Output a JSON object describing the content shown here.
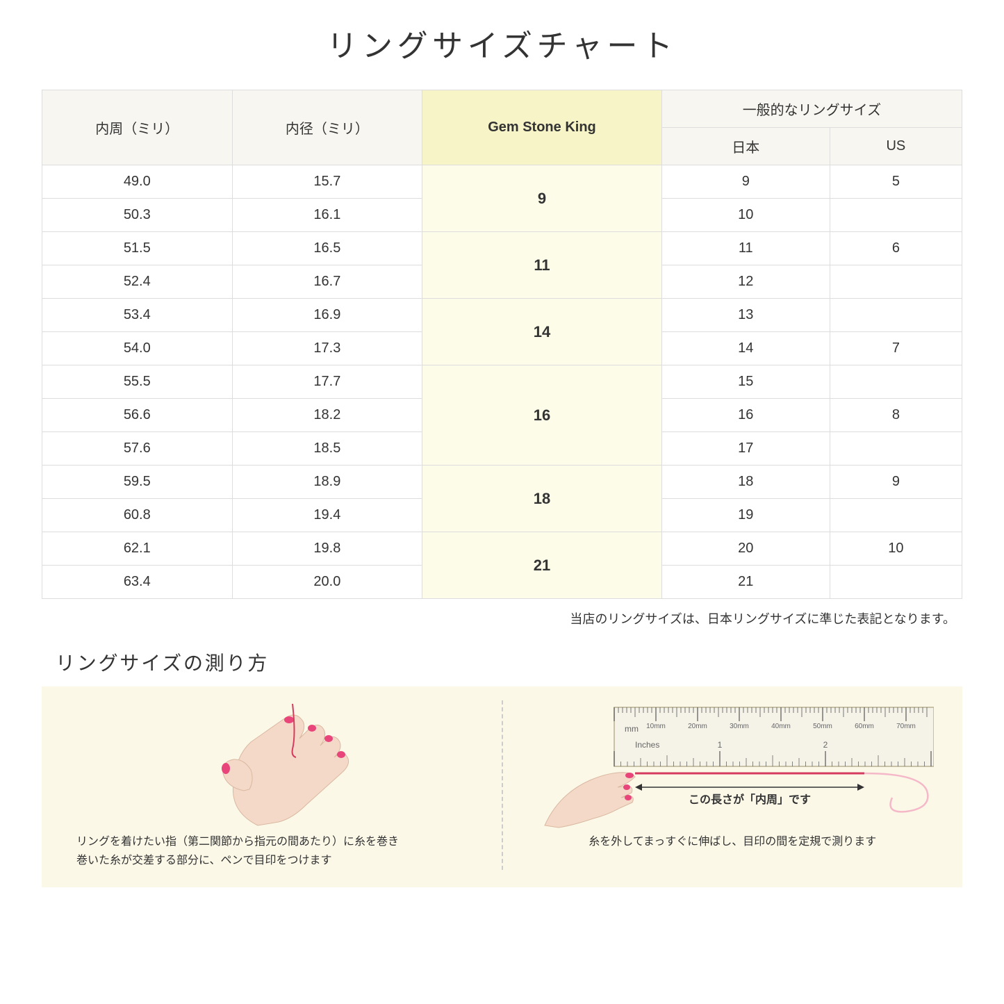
{
  "title": "リングサイズチャート",
  "headers": {
    "col1": "内周（ミリ）",
    "col2": "内径（ミリ）",
    "col3": "Gem Stone King",
    "col4_group": "一般的なリングサイズ",
    "col4a": "日本",
    "col4b": "US"
  },
  "rows": [
    {
      "c1": "49.0",
      "c2": "15.7",
      "gsk": "9",
      "gsk_span": 2,
      "jp": "9",
      "us": "5"
    },
    {
      "c1": "50.3",
      "c2": "16.1",
      "jp": "10",
      "us": ""
    },
    {
      "c1": "51.5",
      "c2": "16.5",
      "gsk": "11",
      "gsk_span": 2,
      "jp": "11",
      "us": "6"
    },
    {
      "c1": "52.4",
      "c2": "16.7",
      "jp": "12",
      "us": ""
    },
    {
      "c1": "53.4",
      "c2": "16.9",
      "gsk": "14",
      "gsk_span": 2,
      "jp": "13",
      "us": ""
    },
    {
      "c1": "54.0",
      "c2": "17.3",
      "jp": "14",
      "us": "7"
    },
    {
      "c1": "55.5",
      "c2": "17.7",
      "gsk": "16",
      "gsk_span": 3,
      "jp": "15",
      "us": ""
    },
    {
      "c1": "56.6",
      "c2": "18.2",
      "jp": "16",
      "us": "8"
    },
    {
      "c1": "57.6",
      "c2": "18.5",
      "jp": "17",
      "us": ""
    },
    {
      "c1": "59.5",
      "c2": "18.9",
      "gsk": "18",
      "gsk_span": 2,
      "jp": "18",
      "us": "9"
    },
    {
      "c1": "60.8",
      "c2": "19.4",
      "jp": "19",
      "us": ""
    },
    {
      "c1": "62.1",
      "c2": "19.8",
      "gsk": "21",
      "gsk_span": 2,
      "jp": "20",
      "us": "10"
    },
    {
      "c1": "63.4",
      "c2": "20.0",
      "jp": "21",
      "us": ""
    }
  ],
  "note": "当店のリングサイズは、日本リングサイズに準じた表記となります。",
  "measure": {
    "title": "リングサイズの測り方",
    "left_text": "リングを着けたい指（第二関節から指元の間あたり）に糸を巻き\n巻いた糸が交差する部分に、ペンで目印をつけます",
    "right_label": "この長さが「内周」です",
    "right_text": "糸を外してまっすぐに伸ばし、目印の間を定規で測ります",
    "ruler_marks": [
      "10mm",
      "20mm",
      "30mm",
      "40mm",
      "50mm",
      "60mm",
      "70mm"
    ],
    "ruler_unit_mm": "mm",
    "ruler_unit_in": "Inches",
    "ruler_in_marks": [
      "1",
      "2"
    ]
  },
  "colors": {
    "header_bg": "#f7f6f0",
    "gsk_header_bg": "#f7f4c8",
    "gsk_cell_bg": "#fdfce8",
    "border": "#dddddd",
    "measure_bg": "#fbf8e8",
    "hand_skin": "#f5d9c8",
    "nail": "#e8457a",
    "thread": "#d43b5f",
    "ruler_body": "#f5f2e8",
    "ruler_border": "#b8b090"
  }
}
